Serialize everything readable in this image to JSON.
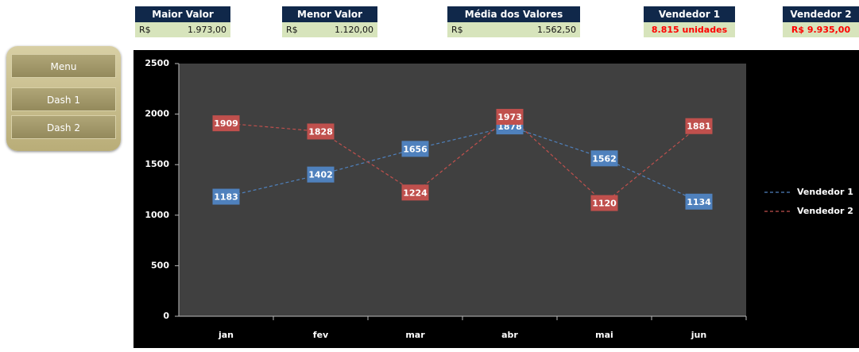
{
  "dashboard": {
    "kpis": [
      {
        "title": "Maior Valor",
        "currency": "R$",
        "value": "1.973,00"
      },
      {
        "title": "Menor Valor",
        "currency": "R$",
        "value": "1.120,00"
      },
      {
        "title": "Média dos Valores",
        "currency": "R$",
        "value": "1.562,50"
      },
      {
        "title": "Vendedor 1",
        "value": "8.815 unidades"
      },
      {
        "title": "Vendedor 2",
        "value": "R$ 9.935,00"
      }
    ],
    "menu": [
      "Menu",
      "Dash 1",
      "Dash 2"
    ]
  },
  "chart_data": {
    "type": "line",
    "categories": [
      "jan",
      "fev",
      "mar",
      "abr",
      "mai",
      "jun"
    ],
    "series": [
      {
        "name": "Vendedor 1",
        "color": "#4f81bd",
        "values": [
          1183,
          1402,
          1656,
          1878,
          1562,
          1134
        ]
      },
      {
        "name": "Vendedor 2",
        "color": "#c0504d",
        "values": [
          1909,
          1828,
          1224,
          1973,
          1120,
          1881
        ]
      }
    ],
    "ylim": [
      0,
      2500
    ],
    "yticks": [
      0,
      500,
      1000,
      1500,
      2000,
      2500
    ],
    "legend": "right",
    "line_style": "dashed"
  }
}
